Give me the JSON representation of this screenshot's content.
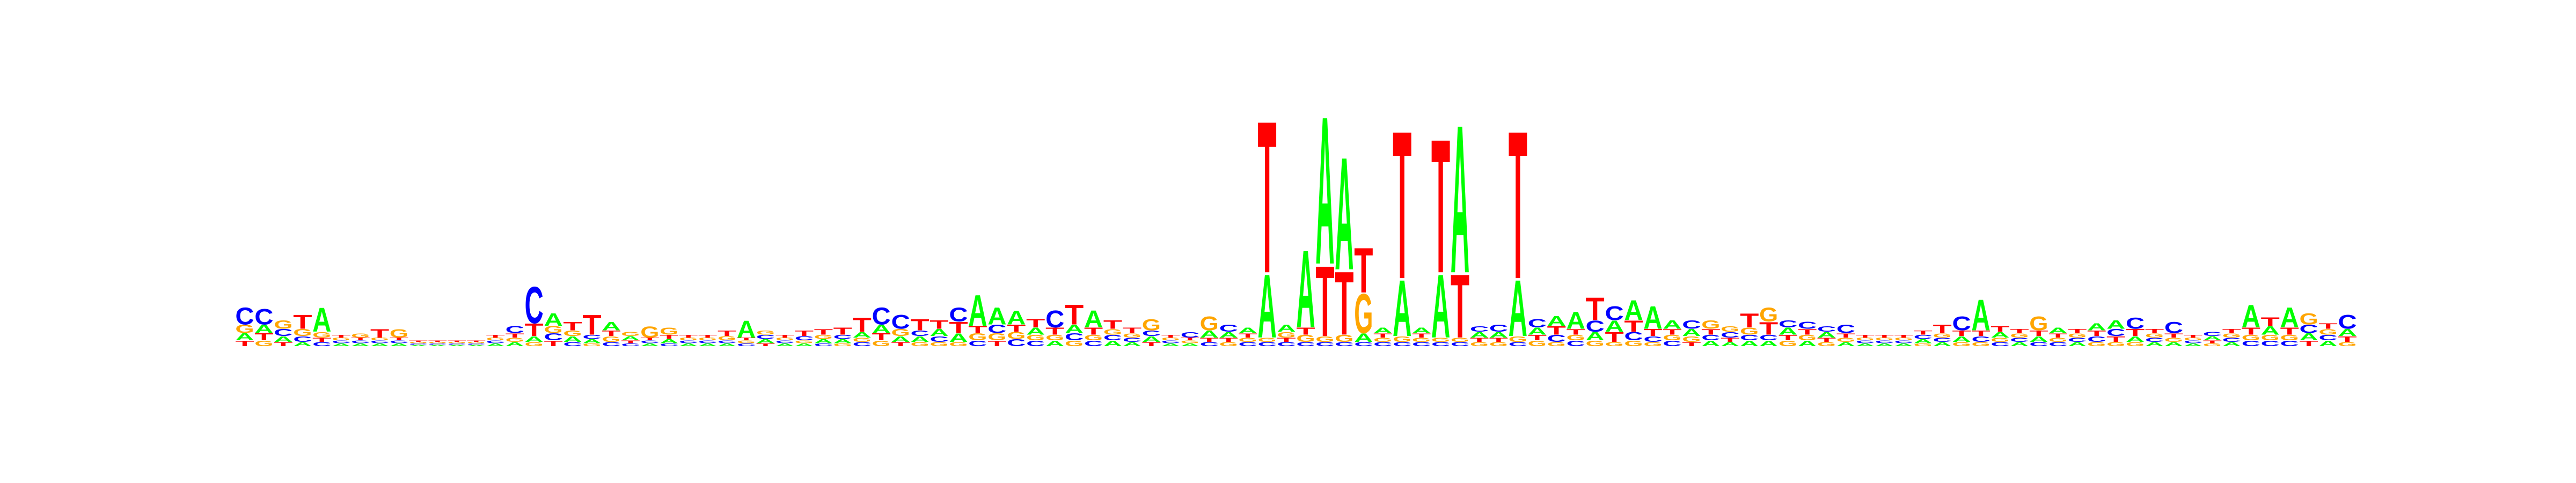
{
  "chart_data": {
    "type": "sequence-logo",
    "alphabet": [
      "A",
      "C",
      "G",
      "T"
    ],
    "colors": {
      "A": "#00ff00",
      "C": "#0000ff",
      "G": "#ffa500",
      "T": "#ff0000"
    },
    "ylim": [
      0,
      2
    ],
    "positions": [
      {
        "A": 0.05,
        "C": 0.12,
        "G": 0.06,
        "T": 0.04
      },
      {
        "A": 0.06,
        "C": 0.11,
        "G": 0.04,
        "T": 0.05
      },
      {
        "A": 0.04,
        "C": 0.05,
        "G": 0.06,
        "T": 0.03
      },
      {
        "A": 0.03,
        "C": 0.04,
        "G": 0.05,
        "T": 0.1
      },
      {
        "A": 0.17,
        "C": 0.03,
        "G": 0.04,
        "T": 0.03
      },
      {
        "A": 0.02,
        "C": 0.02,
        "G": 0.02,
        "T": 0.02
      },
      {
        "A": 0.02,
        "C": 0.02,
        "G": 0.03,
        "T": 0.02
      },
      {
        "A": 0.02,
        "C": 0.02,
        "G": 0.02,
        "T": 0.06
      },
      {
        "A": 0.02,
        "C": 0.02,
        "G": 0.06,
        "T": 0.02
      },
      {
        "A": 0.01,
        "C": 0.01,
        "G": 0.01,
        "T": 0.01
      },
      {
        "A": 0.01,
        "C": 0.01,
        "G": 0.01,
        "T": 0.01
      },
      {
        "A": 0.01,
        "C": 0.01,
        "G": 0.01,
        "T": 0.01
      },
      {
        "A": 0.01,
        "C": 0.01,
        "G": 0.01,
        "T": 0.01
      },
      {
        "A": 0.02,
        "C": 0.02,
        "G": 0.02,
        "T": 0.02
      },
      {
        "A": 0.03,
        "C": 0.05,
        "G": 0.03,
        "T": 0.03
      },
      {
        "A": 0.04,
        "C": 0.26,
        "G": 0.03,
        "T": 0.09
      },
      {
        "A": 0.09,
        "C": 0.05,
        "G": 0.05,
        "T": 0.04
      },
      {
        "A": 0.04,
        "C": 0.03,
        "G": 0.04,
        "T": 0.06
      },
      {
        "A": 0.03,
        "C": 0.03,
        "G": 0.02,
        "T": 0.14
      },
      {
        "A": 0.06,
        "C": 0.03,
        "G": 0.04,
        "T": 0.04
      },
      {
        "A": 0.03,
        "C": 0.02,
        "G": 0.03,
        "T": 0.02
      },
      {
        "A": 0.02,
        "C": 0.02,
        "G": 0.08,
        "T": 0.02
      },
      {
        "A": 0.03,
        "C": 0.02,
        "G": 0.05,
        "T": 0.03
      },
      {
        "A": 0.02,
        "C": 0.02,
        "G": 0.02,
        "T": 0.02
      },
      {
        "A": 0.02,
        "C": 0.02,
        "G": 0.02,
        "T": 0.02
      },
      {
        "A": 0.02,
        "C": 0.02,
        "G": 0.03,
        "T": 0.04
      },
      {
        "A": 0.12,
        "C": 0.02,
        "G": 0.02,
        "T": 0.02
      },
      {
        "A": 0.03,
        "C": 0.03,
        "G": 0.03,
        "T": 0.02
      },
      {
        "A": 0.02,
        "C": 0.02,
        "G": 0.02,
        "T": 0.02
      },
      {
        "A": 0.02,
        "C": 0.03,
        "G": 0.02,
        "T": 0.04
      },
      {
        "A": 0.03,
        "C": 0.02,
        "G": 0.03,
        "T": 0.04
      },
      {
        "A": 0.03,
        "C": 0.03,
        "G": 0.02,
        "T": 0.05
      },
      {
        "A": 0.04,
        "C": 0.03,
        "G": 0.03,
        "T": 0.1
      },
      {
        "A": 0.06,
        "C": 0.12,
        "G": 0.04,
        "T": 0.05
      },
      {
        "A": 0.04,
        "C": 0.1,
        "G": 0.05,
        "T": 0.03
      },
      {
        "A": 0.04,
        "C": 0.04,
        "G": 0.03,
        "T": 0.08
      },
      {
        "A": 0.05,
        "C": 0.04,
        "G": 0.03,
        "T": 0.06
      },
      {
        "A": 0.06,
        "C": 0.1,
        "G": 0.03,
        "T": 0.08
      },
      {
        "A": 0.22,
        "C": 0.04,
        "G": 0.05,
        "T": 0.05
      },
      {
        "A": 0.12,
        "C": 0.06,
        "G": 0.05,
        "T": 0.04
      },
      {
        "A": 0.1,
        "C": 0.05,
        "G": 0.05,
        "T": 0.05
      },
      {
        "A": 0.05,
        "C": 0.04,
        "G": 0.04,
        "T": 0.06
      },
      {
        "A": 0.04,
        "C": 0.12,
        "G": 0.04,
        "T": 0.05
      },
      {
        "A": 0.06,
        "C": 0.05,
        "G": 0.04,
        "T": 0.14
      },
      {
        "A": 0.12,
        "C": 0.04,
        "G": 0.04,
        "T": 0.05
      },
      {
        "A": 0.04,
        "C": 0.04,
        "G": 0.04,
        "T": 0.06
      },
      {
        "A": 0.03,
        "C": 0.03,
        "G": 0.03,
        "T": 0.04
      },
      {
        "A": 0.04,
        "C": 0.04,
        "G": 0.08,
        "T": 0.03
      },
      {
        "A": 0.02,
        "C": 0.02,
        "G": 0.02,
        "T": 0.02
      },
      {
        "A": 0.02,
        "C": 0.04,
        "G": 0.02,
        "T": 0.02
      },
      {
        "A": 0.05,
        "C": 0.03,
        "G": 0.1,
        "T": 0.03
      },
      {
        "A": 0.04,
        "C": 0.05,
        "G": 0.03,
        "T": 0.03
      },
      {
        "A": 0.04,
        "C": 0.03,
        "G": 0.03,
        "T": 0.03
      },
      {
        "A": 0.45,
        "C": 0.03,
        "G": 0.03,
        "T": 1.08
      },
      {
        "A": 0.05,
        "C": 0.03,
        "G": 0.04,
        "T": 0.03
      },
      {
        "A": 0.55,
        "C": 0.03,
        "G": 0.05,
        "T": 0.05
      },
      {
        "A": 1.05,
        "C": 0.03,
        "G": 0.04,
        "T": 0.5
      },
      {
        "A": 0.8,
        "C": 0.03,
        "G": 0.05,
        "T": 0.45
      },
      {
        "A": 0.06,
        "C": 0.03,
        "G": 0.28,
        "T": 0.32
      },
      {
        "A": 0.04,
        "C": 0.03,
        "G": 0.03,
        "T": 0.03
      },
      {
        "A": 0.4,
        "C": 0.03,
        "G": 0.04,
        "T": 1.05
      },
      {
        "A": 0.04,
        "C": 0.03,
        "G": 0.03,
        "T": 0.03
      },
      {
        "A": 0.45,
        "C": 0.03,
        "G": 0.03,
        "T": 0.95
      },
      {
        "A": 1.05,
        "C": 0.03,
        "G": 0.03,
        "T": 0.45
      },
      {
        "A": 0.04,
        "C": 0.04,
        "G": 0.03,
        "T": 0.03
      },
      {
        "A": 0.04,
        "C": 0.05,
        "G": 0.03,
        "T": 0.03
      },
      {
        "A": 0.4,
        "C": 0.03,
        "G": 0.04,
        "T": 1.05
      },
      {
        "A": 0.05,
        "C": 0.06,
        "G": 0.04,
        "T": 0.04
      },
      {
        "A": 0.07,
        "C": 0.05,
        "G": 0.03,
        "T": 0.06
      },
      {
        "A": 0.12,
        "C": 0.04,
        "G": 0.04,
        "T": 0.04
      },
      {
        "A": 0.06,
        "C": 0.08,
        "G": 0.04,
        "T": 0.16
      },
      {
        "A": 0.08,
        "C": 0.1,
        "G": 0.03,
        "T": 0.07
      },
      {
        "A": 0.14,
        "C": 0.06,
        "G": 0.04,
        "T": 0.08
      },
      {
        "A": 0.16,
        "C": 0.04,
        "G": 0.03,
        "T": 0.05
      },
      {
        "A": 0.06,
        "C": 0.04,
        "G": 0.04,
        "T": 0.04
      },
      {
        "A": 0.05,
        "C": 0.06,
        "G": 0.04,
        "T": 0.03
      },
      {
        "A": 0.04,
        "C": 0.04,
        "G": 0.06,
        "T": 0.04
      },
      {
        "A": 0.03,
        "C": 0.04,
        "G": 0.04,
        "T": 0.03
      },
      {
        "A": 0.04,
        "C": 0.04,
        "G": 0.05,
        "T": 0.1
      },
      {
        "A": 0.04,
        "C": 0.04,
        "G": 0.1,
        "T": 0.09
      },
      {
        "A": 0.05,
        "C": 0.05,
        "G": 0.04,
        "T": 0.04
      },
      {
        "A": 0.04,
        "C": 0.05,
        "G": 0.04,
        "T": 0.04
      },
      {
        "A": 0.04,
        "C": 0.04,
        "G": 0.03,
        "T": 0.03
      },
      {
        "A": 0.03,
        "C": 0.06,
        "G": 0.03,
        "T": 0.03
      },
      {
        "A": 0.02,
        "C": 0.02,
        "G": 0.02,
        "T": 0.02
      },
      {
        "A": 0.02,
        "C": 0.02,
        "G": 0.02,
        "T": 0.02
      },
      {
        "A": 0.02,
        "C": 0.02,
        "G": 0.02,
        "T": 0.02
      },
      {
        "A": 0.03,
        "C": 0.03,
        "G": 0.02,
        "T": 0.03
      },
      {
        "A": 0.03,
        "C": 0.03,
        "G": 0.03,
        "T": 0.06
      },
      {
        "A": 0.04,
        "C": 0.1,
        "G": 0.03,
        "T": 0.04
      },
      {
        "A": 0.22,
        "C": 0.04,
        "G": 0.03,
        "T": 0.04
      },
      {
        "A": 0.04,
        "C": 0.03,
        "G": 0.03,
        "T": 0.04
      },
      {
        "A": 0.03,
        "C": 0.03,
        "G": 0.03,
        "T": 0.03
      },
      {
        "A": 0.04,
        "C": 0.03,
        "G": 0.1,
        "T": 0.04
      },
      {
        "A": 0.04,
        "C": 0.03,
        "G": 0.03,
        "T": 0.03
      },
      {
        "A": 0.03,
        "C": 0.03,
        "G": 0.03,
        "T": 0.03
      },
      {
        "A": 0.05,
        "C": 0.04,
        "G": 0.03,
        "T": 0.04
      },
      {
        "A": 0.06,
        "C": 0.05,
        "G": 0.03,
        "T": 0.04
      },
      {
        "A": 0.04,
        "C": 0.08,
        "G": 0.03,
        "T": 0.05
      },
      {
        "A": 0.03,
        "C": 0.03,
        "G": 0.03,
        "T": 0.03
      },
      {
        "A": 0.03,
        "C": 0.08,
        "G": 0.03,
        "T": 0.03
      },
      {
        "A": 0.02,
        "C": 0.02,
        "G": 0.02,
        "T": 0.02
      },
      {
        "A": 0.03,
        "C": 0.03,
        "G": 0.02,
        "T": 0.02
      },
      {
        "A": 0.03,
        "C": 0.03,
        "G": 0.03,
        "T": 0.03
      },
      {
        "A": 0.16,
        "C": 0.04,
        "G": 0.04,
        "T": 0.05
      },
      {
        "A": 0.06,
        "C": 0.04,
        "G": 0.04,
        "T": 0.06
      },
      {
        "A": 0.14,
        "C": 0.04,
        "G": 0.04,
        "T": 0.05
      },
      {
        "A": 0.05,
        "C": 0.06,
        "G": 0.08,
        "T": 0.04
      },
      {
        "A": 0.04,
        "C": 0.04,
        "G": 0.04,
        "T": 0.04
      },
      {
        "A": 0.05,
        "C": 0.1,
        "G": 0.03,
        "T": 0.04
      }
    ]
  }
}
